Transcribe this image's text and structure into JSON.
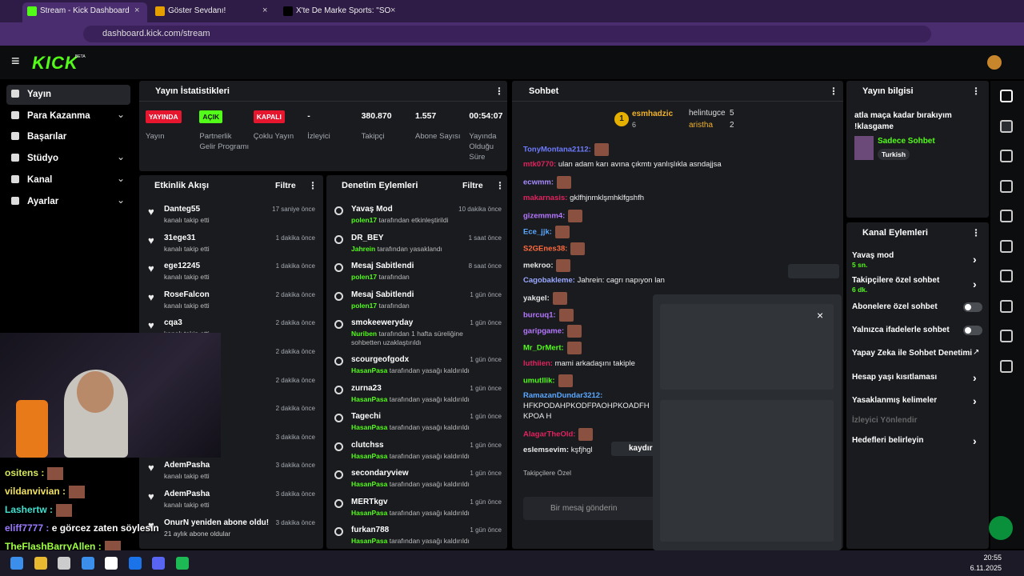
{
  "browser": {
    "tabs": [
      "Stream - Kick Dashboard",
      "Göster Sevdanı!",
      "X'te De Marke Sports: \"SON DA"
    ],
    "url": "dashboard.kick.com/stream"
  },
  "app": {
    "logo": "KICK",
    "beta": "BETA"
  },
  "sidebar": [
    {
      "label": "Yayın",
      "chevron": false
    },
    {
      "label": "Para Kazanma",
      "chevron": true
    },
    {
      "label": "Başarılar",
      "chevron": false
    },
    {
      "label": "Stüdyo",
      "chevron": true
    },
    {
      "label": "Kanal",
      "chevron": true
    },
    {
      "label": "Ayarlar",
      "chevron": true
    }
  ],
  "stats": {
    "title": "Yayın İstatistikleri",
    "items": [
      {
        "value": "YAYINDA",
        "label": "Yayın",
        "badge_color": "#e5162e"
      },
      {
        "value": "AÇIK",
        "label": "Partnerlik Gelir Programı",
        "badge_color": "#53fc18"
      },
      {
        "value": "KAPALI",
        "label": "Çoklu Yayın",
        "badge_color": "#e5162e"
      },
      {
        "value": "-",
        "label": "İzleyici"
      },
      {
        "value": "380.870",
        "label": "Takipçi"
      },
      {
        "value": "1.557",
        "label": "Abone Sayısı"
      },
      {
        "value": "00:54:07",
        "label": "Yayında Olduğu Süre"
      }
    ]
  },
  "activity": {
    "title": "Etkinlik Akışı",
    "filter": "Filtre",
    "items": [
      {
        "name": "Danteg55",
        "desc": "kanalı takip etti",
        "time": "17 saniye önce"
      },
      {
        "name": "31ege31",
        "desc": "kanalı takip etti",
        "time": "1 dakika önce"
      },
      {
        "name": "ege12245",
        "desc": "kanalı takip etti",
        "time": "1 dakika önce"
      },
      {
        "name": "RoseFalcon",
        "desc": "kanalı takip etti",
        "time": "2 dakika önce"
      },
      {
        "name": "cqa3",
        "desc": "kanalı takip etti",
        "time": "2 dakika önce"
      },
      {
        "time": "2 dakika önce"
      },
      {
        "time": "2 dakika önce"
      },
      {
        "time": "2 dakika önce"
      },
      {
        "time": "3 dakika önce"
      },
      {
        "name": "AdemPasha",
        "desc": "kanalı takip etti",
        "time": "3 dakika önce"
      },
      {
        "name": "AdemPasha",
        "desc": "kanalı takip etti",
        "time": "3 dakika önce"
      },
      {
        "name": "OnurN yeniden abone oldu!",
        "desc": "21 aylık abone oldular",
        "time": "3 dakika önce"
      }
    ]
  },
  "moderation": {
    "title": "Denetim Eylemleri",
    "filter": "Filtre",
    "items": [
      {
        "title": "Yavaş Mod",
        "actor": "polen17",
        "desc": "tarafından etkinleştirildi",
        "time": "10 dakika önce"
      },
      {
        "title": "DR_BEY",
        "actor": "Jahrein",
        "desc": "tarafından yasaklandı",
        "time": "1 saat önce"
      },
      {
        "title": "Mesaj Sabitlendi",
        "actor": "polen17",
        "desc": "tarafından",
        "time": "8 saat önce"
      },
      {
        "title": "Mesaj Sabitlendi",
        "actor": "polen17",
        "desc": "tarafından",
        "time": "1 gün önce"
      },
      {
        "title": "smokeeweryday",
        "actor": "Nuriben",
        "desc": "tarafından 1 hafta süreliğine sohbetten uzaklaştırıldı",
        "time": "1 gün önce"
      },
      {
        "title": "scourgeofgodx",
        "actor": "HasanPasa",
        "desc": "tarafından yasağı kaldırıldı",
        "time": "1 gün önce"
      },
      {
        "title": "zurna23",
        "actor": "HasanPasa",
        "desc": "tarafından yasağı kaldırıldı",
        "time": "1 gün önce"
      },
      {
        "title": "Tagechi",
        "actor": "HasanPasa",
        "desc": "tarafından yasağı kaldırıldı",
        "time": "1 gün önce"
      },
      {
        "title": "clutchss",
        "actor": "HasanPasa",
        "desc": "tarafından yasağı kaldırıldı",
        "time": "1 gün önce"
      },
      {
        "title": "secondaryview",
        "actor": "HasanPasa",
        "desc": "tarafından yasağı kaldırıldı",
        "time": "1 gün önce"
      },
      {
        "title": "MERTkgv",
        "actor": "HasanPasa",
        "desc": "tarafından yasağı kaldırıldı",
        "time": "1 gün önce"
      },
      {
        "title": "furkan788",
        "actor": "HasanPasa",
        "desc": "tarafından yasağı kaldırıldı",
        "time": "1 gün önce"
      }
    ]
  },
  "chat": {
    "title": "Sohbet",
    "top": [
      {
        "rank": "1",
        "name": "esmhadzic",
        "count": "6"
      },
      {
        "name": "helintugce",
        "count": "5"
      },
      {
        "name": "aristha",
        "count": "2"
      }
    ],
    "messages": [
      {
        "user": "TonyMontana2112:",
        "color": "#6f7cff"
      },
      {
        "user": "mtk0770:",
        "color": "#e0245e",
        "text": "ulan adam karı avına çıkmtı yanlışlıkla asndajjsa"
      },
      {
        "user": "ecwmm:",
        "color": "#a98bff"
      },
      {
        "user": "makarnasis:",
        "color": "#e0245e",
        "text": "gklfhjnmklşmhklfgshfh"
      },
      {
        "user": "gizemmm4:",
        "color": "#b678ff"
      },
      {
        "user": "Ece_jjk:",
        "color": "#5ba8ff"
      },
      {
        "user": "S2GEnes38:",
        "color": "#ff6b3d"
      },
      {
        "user": "mekroo:",
        "color": "#e8e8e8"
      },
      {
        "user": "Cagobakleme:",
        "color": "#9aa8ff",
        "text": "Jahrein: cagrı napıyon lan"
      },
      {
        "user": "yakgel:",
        "color": "#e8e8e8"
      },
      {
        "user": "burcuq1:",
        "color": "#b678ff"
      },
      {
        "user": "garipgame:",
        "color": "#b678ff"
      },
      {
        "user": "Mr_DrMert:",
        "color": "#53fc18"
      },
      {
        "user": "luthiien:",
        "color": "#e0245e",
        "text": "mami arkadaşını takiple"
      },
      {
        "user": "umutllik:",
        "color": "#53fc18"
      },
      {
        "user": "RamazanDundar3212:",
        "color": "#5ba8ff",
        "text": "HFKPODAHPKODFPAOHPKOADFHKPOA H"
      },
      {
        "user": "AlagarTheOld:",
        "color": "#e0245e"
      },
      {
        "user": "eslemsevim:",
        "color": "#e8e8e8",
        "text": "kşfjhgl"
      }
    ],
    "followers_only": "Takipçilere Özel",
    "placeholder": "Bir mesaj gönderin",
    "pause": "kaydır"
  },
  "stream_info": {
    "title": "Yayın bilgisi",
    "stream_title": "atla maça kadar bırakıyım !klasgame",
    "category": "Sadece Sohbet",
    "tag": "Turkish"
  },
  "channel_actions": {
    "title": "Kanal Eylemleri",
    "items": [
      {
        "label": "Yavaş mod",
        "sub": "5 sn.",
        "control": "chevron"
      },
      {
        "label": "Takipçilere özel sohbet",
        "sub": "6 dk.",
        "control": "chevron"
      },
      {
        "label": "Abonelere özel sohbet",
        "control": "toggle"
      },
      {
        "label": "Yalnızca ifadelerle sohbet",
        "control": "toggle"
      },
      {
        "label": "Yapay Zeka ile Sohbet Denetimi",
        "control": "link"
      },
      {
        "label": "Hesap yaşı kısıtlaması",
        "control": "chevron"
      },
      {
        "label": "Yasaklanmış kelimeler",
        "control": "chevron"
      },
      {
        "label": "İzleyici Yönlendir",
        "control": "disabled"
      },
      {
        "label": "Hedefleri belirleyin",
        "control": "chevron"
      }
    ]
  },
  "overlay_chat": [
    {
      "user": "ositens :",
      "color": "#d6e85a"
    },
    {
      "user": "vildanvivian :",
      "color": "#f0e060"
    },
    {
      "user": "Lashertw :",
      "color": "#40e0d0"
    },
    {
      "user": "eliff7777 :",
      "color": "#9b7bff",
      "text": "e görcez zaten söylesin"
    },
    {
      "user": "TheFlashBarryAllen :",
      "color": "#a0ff40"
    }
  ],
  "taskbar": {
    "time": "20:55",
    "date": "6.11.2025"
  }
}
